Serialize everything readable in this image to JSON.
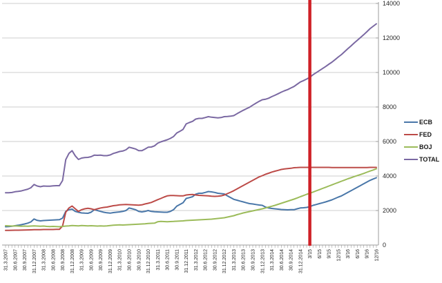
{
  "chart_data": {
    "type": "line",
    "title": "",
    "xlabel": "",
    "ylabel": "",
    "x_freq": "monthly",
    "x_start": "31.3.2007",
    "x_end": "12/16",
    "x_tick_labels": [
      "31.3.2007",
      "30.6.2007",
      "30.9.2007",
      "31.12.2007",
      "31.3.2008",
      "30.6.2008",
      "30.9.2008",
      "31.12.2008",
      "31.3.2009",
      "30.6.2009",
      "30.9.2009",
      "31.12.2009",
      "31.3.2010",
      "30.6.2010",
      "30.9.2010",
      "31.12.2010",
      "31.3.2011",
      "30.6.2011",
      "30.9.2011",
      "31.12.2011",
      "31.3.2012",
      "30.6.2012",
      "30.9.2012",
      "31.12.2012",
      "31.3.2013",
      "30.6.2013",
      "30.9.2013",
      "31.12.2013",
      "31.3.2014",
      "30.6.2014",
      "30.9.2014",
      "31.12.2014",
      "3/15",
      "6/15",
      "9/15",
      "12/15",
      "3/16",
      "6/16",
      "9/16",
      "12/16"
    ],
    "x_months_per_tick_label": 3,
    "ylim": [
      0,
      14000
    ],
    "y_tick_step": 2000,
    "y_tick_labels": [
      "0",
      "2000",
      "4000",
      "6000",
      "8000",
      "10000",
      "12000",
      "14000"
    ],
    "y_axis_side": "right",
    "grid": true,
    "legend_position": "right",
    "marker_line": {
      "color": "#cf2127",
      "month_index": 96,
      "at_label": "3/15"
    },
    "colors": {
      "grid": "#cccccc",
      "axis": "#9b9b9b",
      "tick_text": "#262626",
      "background": "#ffffff"
    },
    "series": [
      {
        "name": "ECB",
        "color": "#4876a8",
        "values": [
          1060,
          1070,
          1090,
          1120,
          1150,
          1180,
          1220,
          1270,
          1340,
          1510,
          1430,
          1400,
          1420,
          1430,
          1440,
          1450,
          1460,
          1470,
          1560,
          1950,
          2050,
          2080,
          1950,
          1900,
          1860,
          1850,
          1840,
          1900,
          2050,
          2000,
          1950,
          1900,
          1870,
          1850,
          1880,
          1900,
          1920,
          1950,
          2000,
          2150,
          2100,
          2050,
          1950,
          1920,
          1950,
          2000,
          1950,
          1930,
          1920,
          1910,
          1900,
          1900,
          1950,
          2050,
          2250,
          2350,
          2450,
          2700,
          2750,
          2800,
          2950,
          3000,
          3000,
          3050,
          3100,
          3080,
          3050,
          3000,
          2980,
          2960,
          2850,
          2750,
          2650,
          2600,
          2550,
          2500,
          2450,
          2400,
          2380,
          2350,
          2320,
          2300,
          2200,
          2150,
          2120,
          2100,
          2080,
          2060,
          2050,
          2040,
          2050,
          2050,
          2100,
          2150,
          2160,
          2180,
          2220,
          2300,
          2350,
          2400,
          2450,
          2500,
          2560,
          2620,
          2700,
          2780,
          2850,
          2950,
          3050,
          3150,
          3250,
          3350,
          3450,
          3550,
          3650,
          3750,
          3830,
          3900
        ]
      },
      {
        "name": "FED",
        "color": "#bc4a47",
        "values": [
          850,
          850,
          855,
          860,
          860,
          865,
          870,
          875,
          880,
          890,
          890,
          890,
          900,
          900,
          900,
          900,
          910,
          910,
          1100,
          1900,
          2150,
          2260,
          2100,
          1950,
          2050,
          2100,
          2130,
          2100,
          2050,
          2100,
          2150,
          2180,
          2200,
          2240,
          2280,
          2300,
          2330,
          2340,
          2350,
          2340,
          2330,
          2320,
          2310,
          2330,
          2380,
          2420,
          2470,
          2550,
          2630,
          2700,
          2780,
          2850,
          2870,
          2870,
          2860,
          2850,
          2850,
          2900,
          2920,
          2930,
          2900,
          2880,
          2870,
          2860,
          2850,
          2830,
          2820,
          2830,
          2850,
          2900,
          2980,
          3060,
          3150,
          3250,
          3350,
          3450,
          3550,
          3650,
          3750,
          3850,
          3950,
          4020,
          4100,
          4160,
          4230,
          4280,
          4330,
          4380,
          4410,
          4430,
          4450,
          4480,
          4490,
          4500,
          4500,
          4500,
          4500,
          4500,
          4500,
          4500,
          4500,
          4500,
          4500,
          4490,
          4490,
          4490,
          4490,
          4490,
          4490,
          4490,
          4490,
          4490,
          4490,
          4490,
          4490,
          4500,
          4500,
          4500
        ]
      },
      {
        "name": "BOJ",
        "color": "#9bbb59",
        "values": [
          1120,
          1110,
          1100,
          1110,
          1100,
          1090,
          1100,
          1090,
          1100,
          1110,
          1100,
          1090,
          1100,
          1080,
          1070,
          1080,
          1070,
          1060,
          1080,
          1100,
          1110,
          1130,
          1120,
          1110,
          1130,
          1120,
          1110,
          1120,
          1110,
          1100,
          1110,
          1100,
          1110,
          1130,
          1150,
          1160,
          1170,
          1160,
          1170,
          1180,
          1190,
          1200,
          1210,
          1220,
          1230,
          1250,
          1260,
          1270,
          1350,
          1370,
          1360,
          1350,
          1360,
          1370,
          1380,
          1390,
          1400,
          1420,
          1430,
          1440,
          1450,
          1460,
          1470,
          1480,
          1490,
          1500,
          1520,
          1540,
          1560,
          1580,
          1620,
          1660,
          1700,
          1760,
          1810,
          1860,
          1900,
          1940,
          1980,
          2020,
          2060,
          2100,
          2150,
          2200,
          2250,
          2300,
          2360,
          2420,
          2480,
          2540,
          2600,
          2660,
          2730,
          2800,
          2870,
          2940,
          3000,
          3070,
          3140,
          3210,
          3280,
          3350,
          3420,
          3490,
          3560,
          3630,
          3700,
          3770,
          3840,
          3900,
          3970,
          4030,
          4090,
          4150,
          4220,
          4290,
          4350,
          4420
        ]
      },
      {
        "name": "TOTAL",
        "color": "#7a68a2",
        "values": [
          3030,
          3030,
          3045,
          3090,
          3110,
          3135,
          3190,
          3235,
          3320,
          3510,
          3420,
          3380,
          3420,
          3410,
          3410,
          3430,
          3440,
          3440,
          3740,
          4950,
          5310,
          5470,
          5170,
          4960,
          5040,
          5070,
          5080,
          5120,
          5210,
          5200,
          5210,
          5180,
          5180,
          5220,
          5310,
          5360,
          5420,
          5450,
          5520,
          5670,
          5620,
          5570,
          5470,
          5470,
          5560,
          5670,
          5680,
          5750,
          5900,
          5980,
          6040,
          6100,
          6180,
          6290,
          6490,
          6590,
          6700,
          7020,
          7100,
          7170,
          7300,
          7340,
          7340,
          7390,
          7440,
          7410,
          7390,
          7370,
          7390,
          7440,
          7450,
          7470,
          7500,
          7610,
          7710,
          7810,
          7900,
          7990,
          8110,
          8220,
          8330,
          8420,
          8450,
          8510,
          8600,
          8680,
          8770,
          8860,
          8940,
          9010,
          9100,
          9190,
          9320,
          9450,
          9530,
          9620,
          9720,
          9870,
          9990,
          10110,
          10230,
          10350,
          10480,
          10600,
          10750,
          10900,
          11040,
          11210,
          11380,
          11540,
          11710,
          11870,
          12030,
          12190,
          12360,
          12540,
          12680,
          12820
        ]
      }
    ],
    "legend": {
      "items": [
        {
          "label": "ECB",
          "color": "#4876a8"
        },
        {
          "label": "FED",
          "color": "#bc4a47"
        },
        {
          "label": "BOJ",
          "color": "#9bbb59"
        },
        {
          "label": "TOTAL",
          "color": "#7a68a2"
        }
      ]
    }
  }
}
